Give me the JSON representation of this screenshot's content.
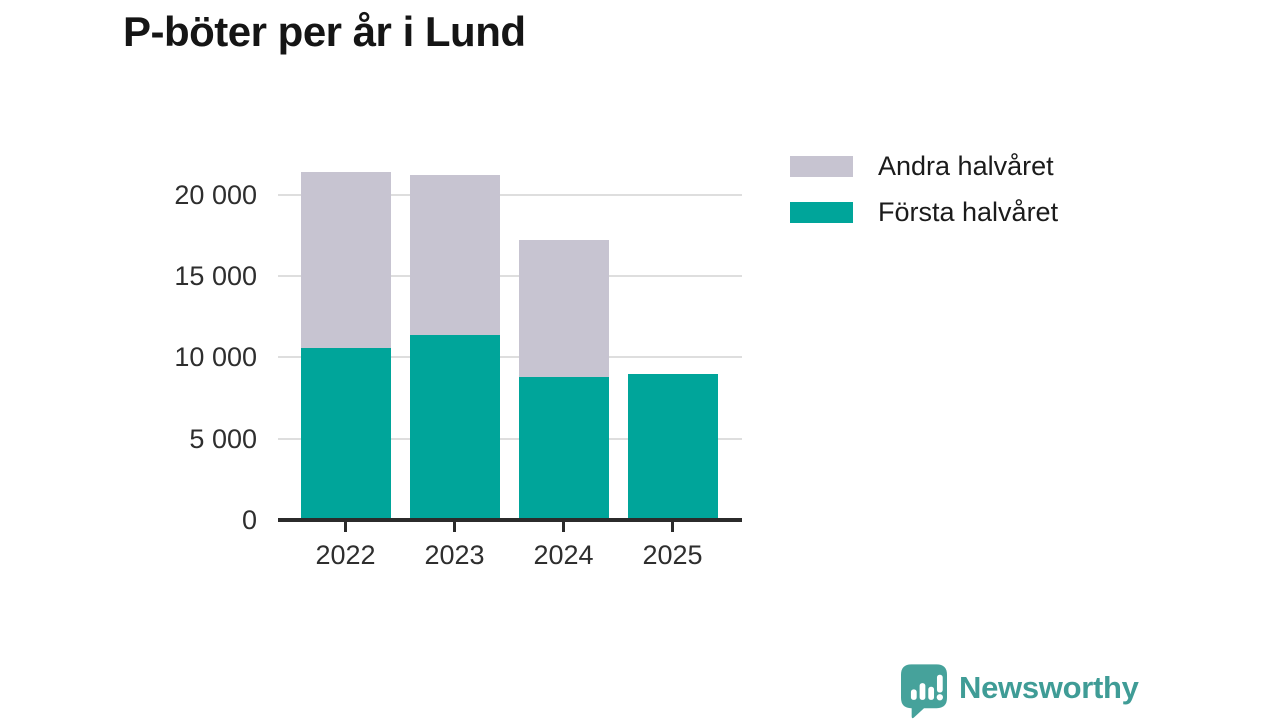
{
  "title": "P-böter per år i Lund",
  "legend": [
    {
      "label": "Andra halvåret",
      "color": "#c7c4d1"
    },
    {
      "label": "Första halvåret",
      "color": "#00a59a"
    }
  ],
  "chart_data": {
    "type": "bar",
    "stacked": true,
    "title": "P-böter per år i Lund",
    "categories": [
      "2022",
      "2023",
      "2024",
      "2025"
    ],
    "series": [
      {
        "name": "Första halvåret",
        "color": "#00a59a",
        "values": [
          10600,
          11400,
          8800,
          9000
        ]
      },
      {
        "name": "Andra halvåret",
        "color": "#c7c4d1",
        "values": [
          10800,
          9800,
          8400,
          0
        ]
      }
    ],
    "totals": [
      21400,
      21200,
      17200,
      9000
    ],
    "xlabel": "",
    "ylabel": "",
    "ylim": [
      0,
      22250
    ],
    "yticks": [
      0,
      5000,
      10000,
      15000,
      20000
    ],
    "ytick_labels": [
      "0",
      "5 000",
      "10 000",
      "15 000",
      "20 000"
    ],
    "grid": true,
    "axis_color": "#2b2b2b",
    "gridline_color": "#dedede",
    "legend_position": "top-right"
  },
  "branding": {
    "logo_text": "Newsworthy",
    "logo_color": "#3f9c96",
    "icon": "newsworthy-speech-bubble-bar-chart-icon"
  }
}
